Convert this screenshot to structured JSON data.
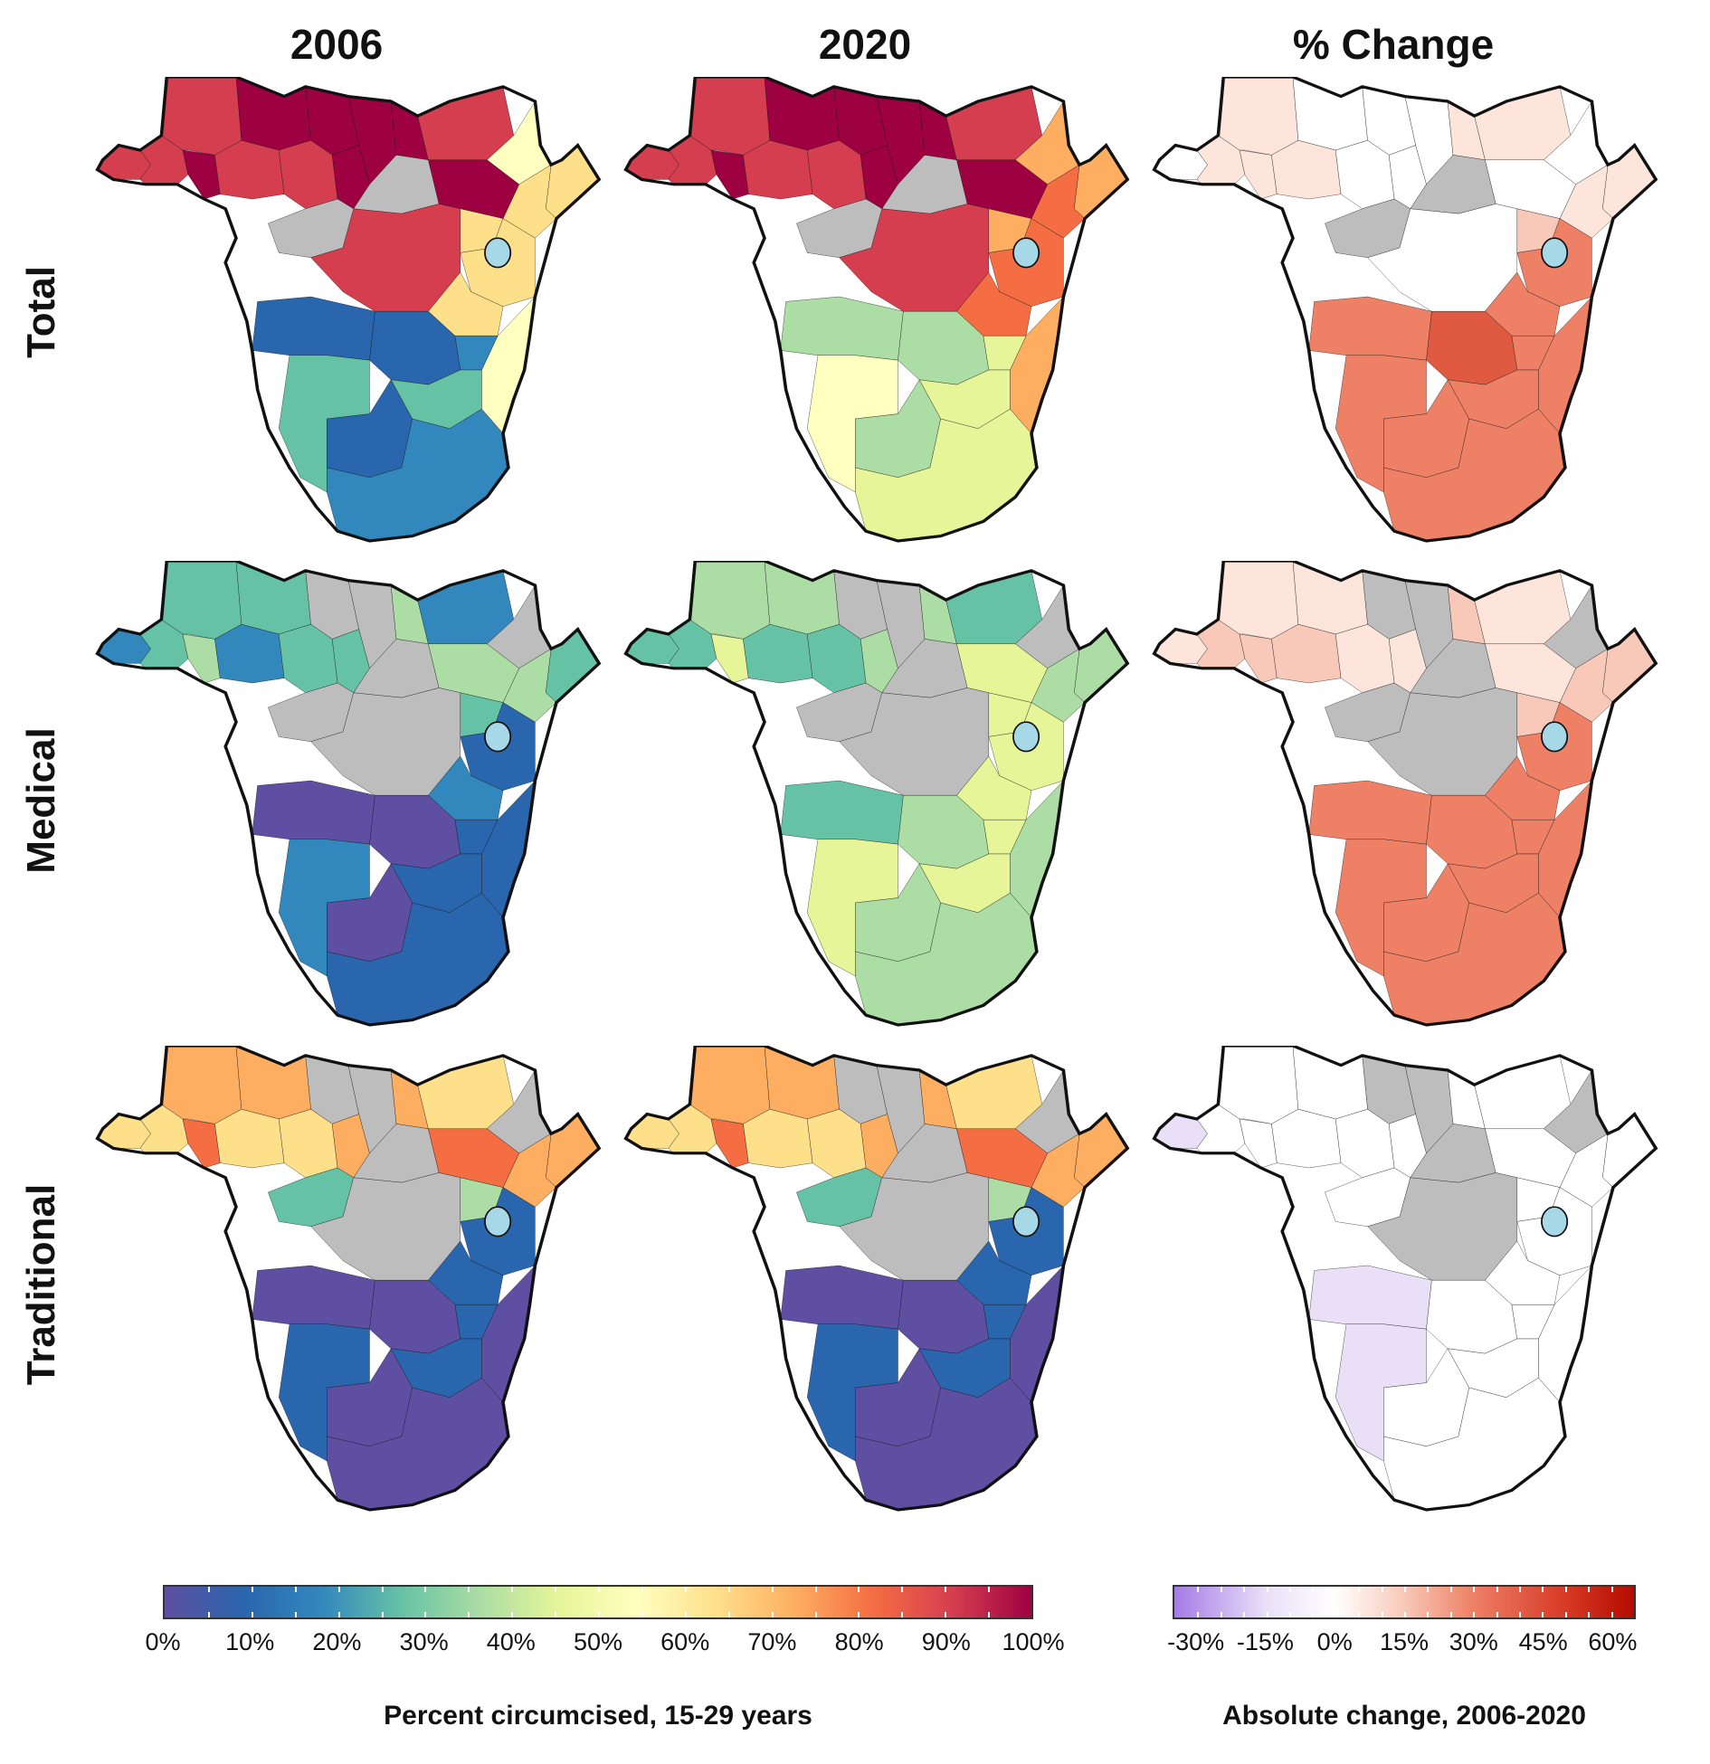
{
  "columns": [
    "2006",
    "2020",
    "% Change"
  ],
  "rows": [
    "Total",
    "Medical",
    "Traditional"
  ],
  "legend_left": {
    "title": "Percent circumcised, 15-29 years",
    "ticks": [
      "0%",
      "10%",
      "20%",
      "30%",
      "40%",
      "50%",
      "60%",
      "70%",
      "80%",
      "90%",
      "100%"
    ],
    "colors": [
      "#5e4fa2",
      "#2a66ad",
      "#3288bd",
      "#66c2a5",
      "#abdda4",
      "#e6f598",
      "#ffffbf",
      "#fee08b",
      "#fdae61",
      "#f46d43",
      "#d53e4f",
      "#9e0142"
    ]
  },
  "legend_right": {
    "title": "Absolute change, 2006-2020",
    "ticks": [
      "-30%",
      "-15%",
      "0%",
      "15%",
      "30%",
      "45%",
      "60%"
    ],
    "colors": [
      "#a57be6",
      "#e9e0f8",
      "#ffffff",
      "#f8c9b8",
      "#ee8066",
      "#d73a26",
      "#b40b00"
    ],
    "range": [
      -35,
      65
    ]
  },
  "map_colors": {
    "no_data": "#bdbdbd",
    "lake": "#a6d8e8",
    "border": "#111111"
  }
}
